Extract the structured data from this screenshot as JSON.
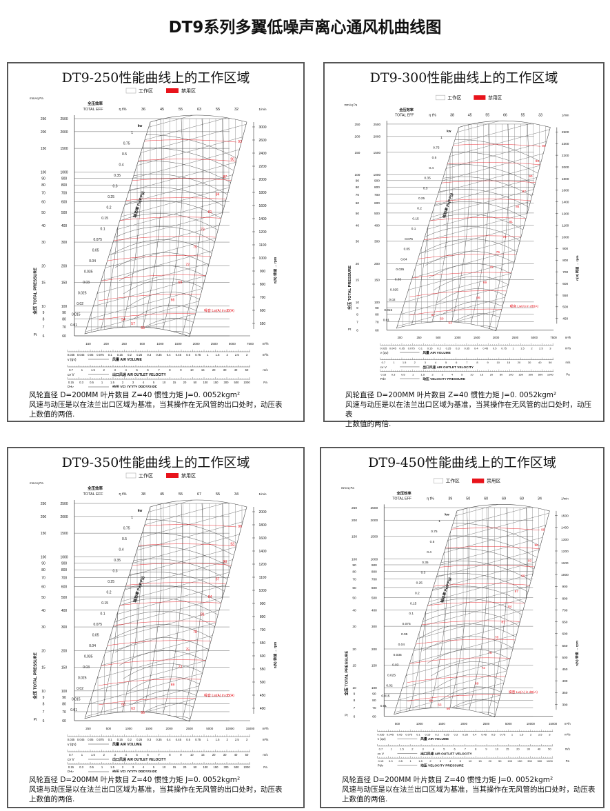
{
  "title": "DT9系列多翼低噪声离心通风机曲线图",
  "legend": {
    "work": "工作区",
    "forbidden": "禁用区",
    "work_color": "#ffffff",
    "forbidden_color": "#e8131b"
  },
  "colors": {
    "noise": "#e8131b",
    "grid": "#555555"
  },
  "labels": {
    "units_left": "mmAq Pa",
    "eff_cn": "全压效率",
    "eff_en": "TOTAL   EFF",
    "eff_sym": "η t%",
    "kw": "kw",
    "pressure_axis": "全压 TOTAL PRESSURE",
    "pt": "Pt",
    "power_axis": "轴功率 Pe(P,Pg)",
    "rpm_unit": "1/min",
    "rpm_axis": "n(N) 转速 → rpm",
    "noise": "噪音 Lw(A) in  dB(A)",
    "m3h": "m³/h",
    "m3s": "m³/s",
    "ms": "m/s",
    "pa": "Pa",
    "air_volume_sym": "v (qv)",
    "air_volume": "风量 AIR VOLUME",
    "outlet_sym": "cv  V",
    "outlet": "出口风速 AIR OUTLET VELOCITY",
    "vp_sym": "Pdv",
    "vp": "动压 VELOCITY PRESSURE"
  },
  "mmaq": [
    "250",
    "200",
    "150",
    "100",
    "90",
    "80",
    "70",
    "60",
    "50",
    "40",
    "30",
    "20",
    "15",
    "10",
    "9",
    "8",
    "7",
    "6"
  ],
  "pa": [
    "2500",
    "2000",
    "1500",
    "1000",
    "900",
    "800",
    "700",
    "600",
    "500",
    "400",
    "300",
    "200",
    "150",
    "100",
    "90",
    "80",
    "70",
    "60"
  ],
  "kw_values": [
    "1",
    "0.75",
    "0.5",
    "0.4",
    "0.35",
    "0.3",
    "0.25",
    "0.2",
    "0.15",
    "0.1",
    "0.075",
    "0.05",
    "0.04",
    "0.035",
    "0.03",
    "0.025",
    "0.02",
    "0.015",
    "0.01"
  ],
  "m3s": [
    "0.035",
    "0.045",
    "0.05",
    "0.075",
    "0.1",
    "0.15",
    "0.2",
    "0.25",
    "0.3",
    "0.35",
    "0.4",
    "0.45",
    "0.5",
    "0.75",
    "1",
    "1.5",
    "2",
    "2.5",
    "3"
  ],
  "velocity": [
    "0.7",
    "1",
    "1.5",
    "2",
    "3",
    "4",
    "5",
    "6",
    "7",
    "8",
    "9",
    "10",
    "15",
    "20",
    "30",
    "40",
    "50"
  ],
  "vpressure": [
    "0.15",
    "0.3",
    "0.5",
    "1",
    "1.5",
    "2",
    "3",
    "4",
    "5",
    "10",
    "15",
    "20",
    "50",
    "100",
    "150",
    "300",
    "500",
    "1000"
  ],
  "footer": {
    "line1": "风轮直径    D=200MM      叶片数目   Z=40          惯性力矩     J=0. 0052kgm²",
    "line2": "风速与动压是以在法兰出口区域为基准，当其操作在无风管的出口处时，动压表",
    "line3": "上数值的两倍."
  },
  "panels": [
    {
      "title": "DT9-250性能曲线上的工作区域",
      "eff": [
        "36",
        "45",
        "55",
        "63",
        "55",
        "32"
      ],
      "rpm": [
        "3000",
        "2600",
        "2400",
        "2200",
        "2000",
        "1800",
        "1600",
        "1400",
        "1200",
        "1100",
        "1000",
        "900",
        "800",
        "700",
        "600",
        "550"
      ],
      "noise": [
        "93",
        "90",
        "87",
        "84",
        "81",
        "73",
        "75",
        "72",
        "69",
        "66",
        "63",
        "57",
        "54"
      ],
      "m3h": [
        "150",
        "200",
        "250",
        "500",
        "1000",
        "1500",
        "2000",
        "2500",
        "5000",
        "7500"
      ]
    },
    {
      "title": "DT9-300性能曲线上的工作区域",
      "eff": [
        "38",
        "45",
        "55",
        "66",
        "55",
        "33"
      ],
      "rpm": [
        "2500",
        "2300",
        "2200",
        "2000",
        "1800",
        "1600",
        "1400",
        "1200",
        "1100",
        "1000",
        "900",
        "800",
        "700",
        "600",
        "550",
        "500",
        "450"
      ],
      "noise": [
        "96",
        "93",
        "90",
        "87",
        "84",
        "81",
        "78",
        "75",
        "72",
        "69",
        "66",
        "63",
        "60",
        "57"
      ],
      "m3h": [
        "200",
        "250",
        "500",
        "1000",
        "1500",
        "2000",
        "2500",
        "5000",
        "7500"
      ]
    },
    {
      "title": "DT9-350性能曲线上的工作区域",
      "eff": [
        "38",
        "45",
        "55",
        "67",
        "55",
        "34"
      ],
      "rpm": [
        "2000",
        "1800",
        "1600",
        "1400",
        "1200",
        "1100",
        "1000",
        "900",
        "800",
        "700",
        "650",
        "600",
        "550",
        "500",
        "450",
        "400"
      ],
      "noise": [
        "96",
        "93",
        "90",
        "87",
        "84",
        "81",
        "78",
        "75",
        "72",
        "69",
        "66",
        "63",
        "60"
      ],
      "m3h": [
        "250",
        "500",
        "1000",
        "1500",
        "2000",
        "2500",
        "5000",
        "10000",
        "15000"
      ]
    },
    {
      "title": "DT9-450性能曲线上的工作区域",
      "eff": [
        "39",
        "50",
        "60",
        "69",
        "60",
        "34"
      ],
      "rpm": [
        "1500",
        "1400",
        "1300",
        "1200",
        "1100",
        "1000",
        "900",
        "800",
        "700",
        "650",
        "600",
        "550",
        "500",
        "450",
        "400",
        "350",
        "300"
      ],
      "noise": [
        "99",
        "96",
        "93",
        "90",
        "87",
        "84",
        "81",
        "78",
        "75",
        "72",
        "69",
        "66",
        "63",
        "60"
      ],
      "m3h": [
        "500",
        "1000",
        "1500",
        "2000",
        "2500",
        "5000",
        "10000",
        "15000"
      ]
    }
  ]
}
